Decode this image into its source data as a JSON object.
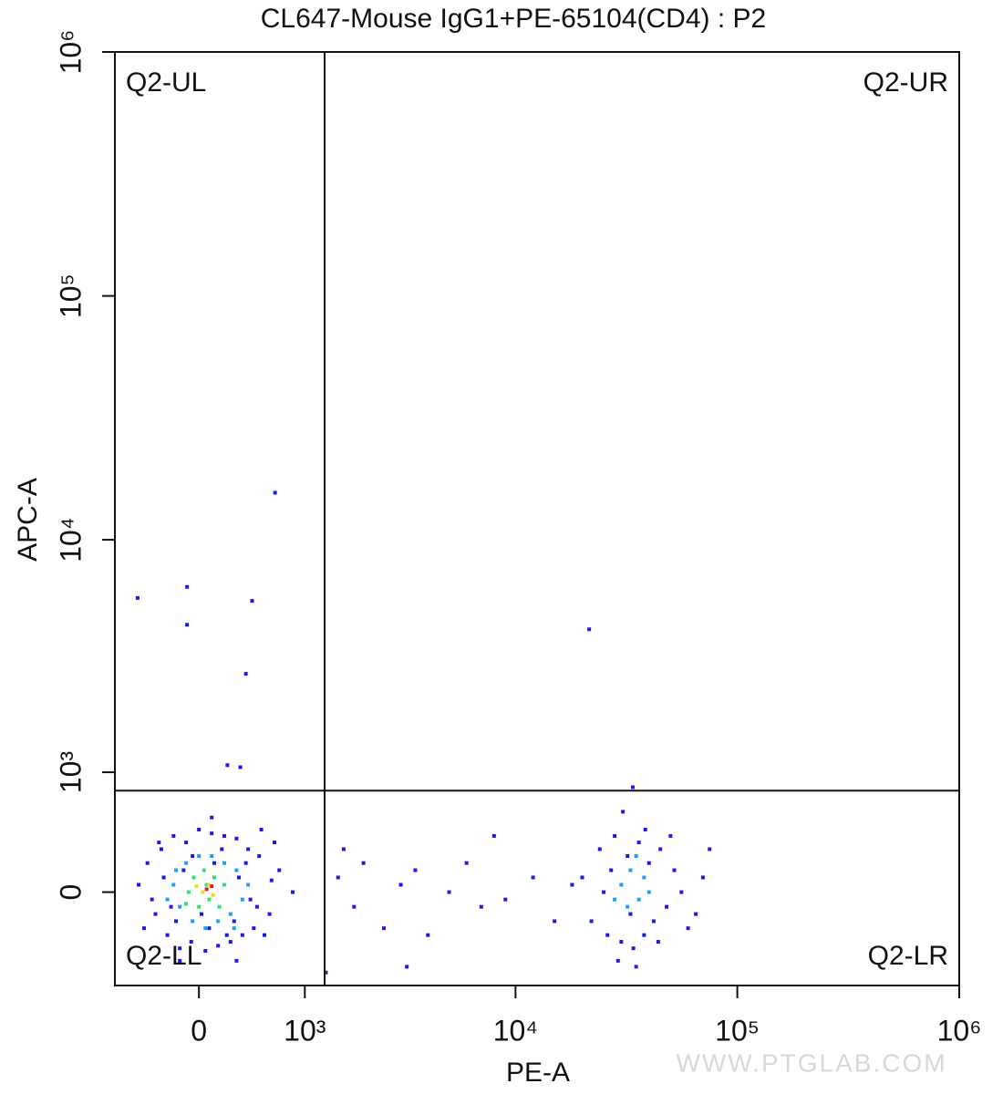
{
  "chart_data": {
    "type": "scatter",
    "title": "CL647-Mouse IgG1+PE-65104(CD4) : P2",
    "x_label": "PE-A",
    "y_label": "APC-A",
    "scale": "biexponential",
    "xlim": [
      -740,
      1000000
    ],
    "ylim": [
      -720,
      1000000
    ],
    "xticks": [
      0,
      {
        "value": 1000,
        "label": "10³"
      },
      {
        "value": 10000,
        "label": "10⁴"
      },
      {
        "value": 100000,
        "label": "10⁵"
      },
      {
        "value": 1000000,
        "label": "10⁶"
      }
    ],
    "yticks": [
      0,
      {
        "value": 1000,
        "label": "10³"
      },
      {
        "value": 10000,
        "label": "10⁴"
      },
      {
        "value": 100000,
        "label": "10⁵"
      },
      {
        "value": 1000000,
        "label": "10⁶"
      }
    ],
    "quadrant_gate": {
      "x": 1280,
      "y": 800
    },
    "quadrant_labels": {
      "ul": "Q2-UL",
      "ur": "Q2-UR",
      "ll": "Q2-LL",
      "lr": "Q2-LR"
    },
    "watermark": "WWW.PTGLAB.COM",
    "series": [
      {
        "color": "#1a1ae6",
        "x": [
          -500,
          -420,
          -350,
          -300,
          -250,
          -200,
          -150,
          -100,
          -60,
          0,
          50,
          100,
          150,
          200,
          250,
          300,
          350,
          400,
          450,
          500,
          600,
          700,
          850,
          -380,
          -280,
          -180,
          -50,
          80,
          180,
          280,
          380,
          480,
          620,
          -320,
          -220,
          -120,
          20,
          120,
          220,
          320,
          420,
          550,
          -450,
          300,
          650,
          -150,
          100,
          520,
          1500,
          1800,
          2000,
          2500,
          3000,
          3500,
          4000,
          5000,
          6000,
          7000,
          8000,
          12000,
          15000,
          1300,
          3200,
          1600,
          9000,
          -510,
          -93,
          -93,
          435,
          380,
          656,
          21500,
          225,
          332,
          33800,
          20000,
          22000,
          24000,
          26000,
          28000,
          30000,
          32000,
          34000,
          36000,
          38000,
          40000,
          42000,
          45000,
          48000,
          52000,
          56000,
          60000,
          70000,
          75000,
          25000,
          27000,
          33000,
          38500,
          44000,
          18000,
          65000,
          30500,
          29000,
          35000,
          50000
        ],
        "values": [
          50,
          200,
          -150,
          300,
          -300,
          400,
          -400,
          350,
          -350,
          450,
          -420,
          420,
          -380,
          400,
          -350,
          380,
          -300,
          300,
          -250,
          250,
          -150,
          150,
          0,
          -50,
          100,
          -200,
          250,
          -250,
          300,
          -200,
          200,
          -100,
          80,
          350,
          -100,
          150,
          -150,
          200,
          -300,
          100,
          -50,
          -300,
          -250,
          -500,
          350,
          -500,
          550,
          450,
          100,
          -100,
          200,
          -250,
          50,
          150,
          -300,
          0,
          200,
          -100,
          400,
          100,
          -200,
          -600,
          -550,
          300,
          -50,
          5760,
          6400,
          4460,
          5600,
          2780,
          15600,
          4270,
          1085,
          1060,
          835,
          100,
          -200,
          300,
          -300,
          400,
          -350,
          250,
          -400,
          350,
          -300,
          200,
          -200,
          300,
          -100,
          150,
          0,
          -250,
          100,
          300,
          0,
          150,
          -150,
          450,
          -350,
          50,
          -150,
          600,
          -500,
          -550,
          400
        ]
      },
      {
        "color": "#1ea0f0",
        "x": [
          -200,
          -150,
          -100,
          -50,
          0,
          50,
          100,
          150,
          200,
          250,
          300,
          350,
          400,
          -250,
          -180,
          280,
          30000,
          33000,
          36000,
          38000,
          32000,
          35000,
          40000,
          28000
        ],
        "values": [
          50,
          -100,
          200,
          -200,
          250,
          -250,
          250,
          -200,
          200,
          -150,
          150,
          -50,
          50,
          -50,
          150,
          -250,
          50,
          150,
          -50,
          100,
          -100,
          250,
          0,
          -50
        ]
      },
      {
        "color": "#2ee07a",
        "x": [
          -80,
          -40,
          0,
          40,
          80,
          120,
          160,
          200,
          -100,
          60
        ],
        "values": [
          0,
          100,
          -100,
          150,
          -50,
          100,
          -100,
          50,
          -80,
          50
        ]
      },
      {
        "color": "#e8e020",
        "x": [
          30,
          80,
          110,
          -20
        ],
        "values": [
          0,
          50,
          -20,
          40
        ]
      },
      {
        "color": "#e02020",
        "x": [
          60,
          100
        ],
        "values": [
          20,
          40
        ]
      }
    ]
  }
}
